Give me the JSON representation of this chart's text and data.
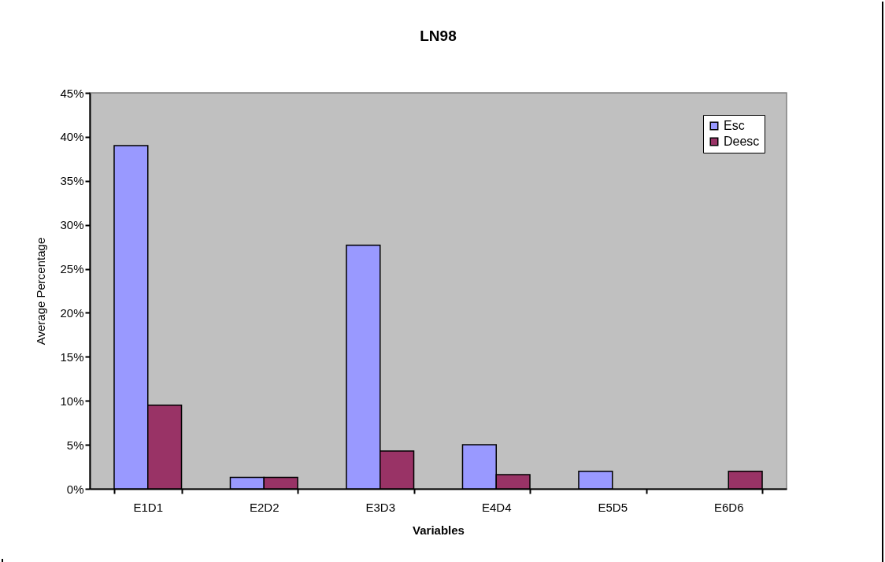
{
  "chart_data": {
    "type": "bar",
    "title": "LN98",
    "xlabel": "Variables",
    "ylabel": "Average Percentage",
    "categories": [
      "E1D1",
      "E2D2",
      "E3D3",
      "E4D4",
      "E5D5",
      "E6D6"
    ],
    "series": [
      {
        "name": "Esc",
        "color": "#9999ff",
        "values": [
          39,
          1.3,
          27.7,
          5.0,
          2.0,
          null
        ]
      },
      {
        "name": "Deesc",
        "color": "#993366",
        "values": [
          9.5,
          1.3,
          4.3,
          1.6,
          null,
          2.0
        ]
      }
    ],
    "ylim": [
      0,
      45
    ],
    "yticks": [
      {
        "value": 0,
        "label": "0%"
      },
      {
        "value": 5,
        "label": "5%"
      },
      {
        "value": 10,
        "label": "10%"
      },
      {
        "value": 15,
        "label": "15%"
      },
      {
        "value": 20,
        "label": "20%"
      },
      {
        "value": 25,
        "label": "25%"
      },
      {
        "value": 30,
        "label": "30%"
      },
      {
        "value": 35,
        "label": "35%"
      },
      {
        "value": 40,
        "label": "40%"
      },
      {
        "value": 45,
        "label": "45%"
      }
    ],
    "grid": false,
    "legend": "top right"
  }
}
